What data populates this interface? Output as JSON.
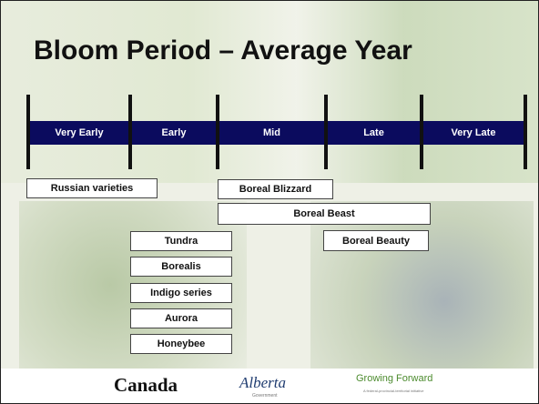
{
  "title": "Bloom Period – Average Year",
  "timeline": [
    "Very Early",
    "Early",
    "Mid",
    "Late",
    "Very Late"
  ],
  "varieties": [
    "Russian varieties",
    "Boreal Blizzard",
    "Boreal Beast",
    "Boreal Beauty",
    "Tundra",
    "Borealis",
    "Indigo series",
    "Aurora",
    "Honeybee"
  ],
  "footer": {
    "canada": "Canada",
    "alberta": "Alberta",
    "alberta_sub": "Government",
    "growing": "Growing Forward",
    "growing_sub": "A federal-provincial-territorial initiative"
  }
}
